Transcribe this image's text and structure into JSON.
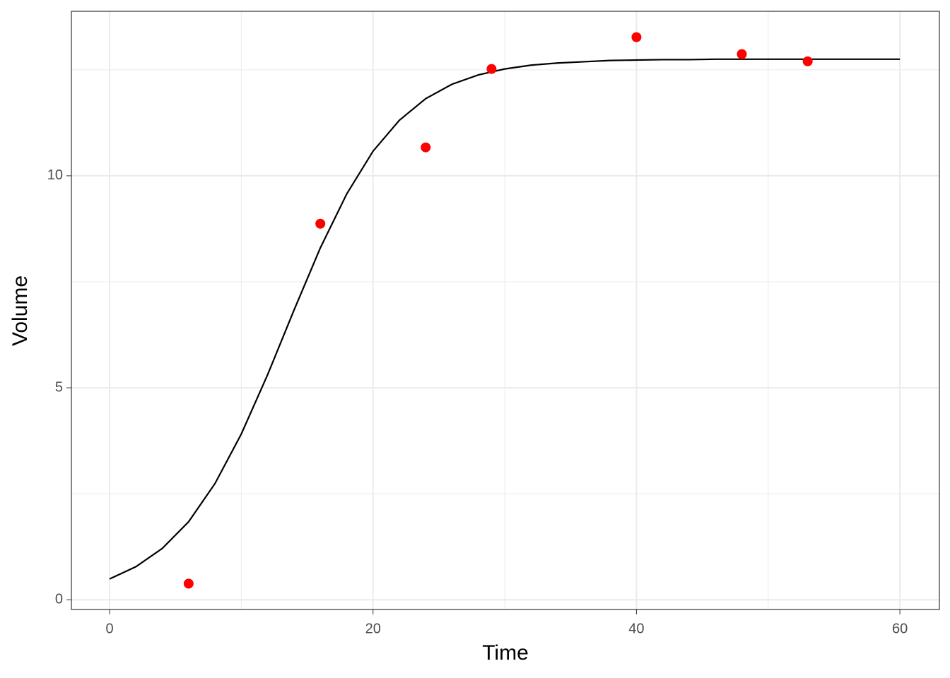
{
  "chart_data": {
    "type": "scatter",
    "x_label": "Time",
    "y_label": "Volume",
    "xlim": [
      -2.9,
      63.0
    ],
    "ylim": [
      -0.23,
      13.88
    ],
    "xticks": [
      0,
      20,
      40,
      60
    ],
    "yticks": [
      0,
      5,
      10
    ],
    "grid": true,
    "series": [
      {
        "type": "line",
        "color": "#000000",
        "x": [
          0,
          2,
          4,
          6,
          8,
          10,
          12,
          14,
          16,
          18,
          20,
          22,
          24,
          26,
          28,
          30,
          32,
          34,
          36,
          38,
          40,
          42,
          44,
          46,
          48,
          50,
          52,
          54,
          56,
          58,
          60
        ],
        "values": [
          0.49,
          0.78,
          1.21,
          1.84,
          2.74,
          3.91,
          5.31,
          6.83,
          8.3,
          9.57,
          10.58,
          11.31,
          11.82,
          12.16,
          12.38,
          12.52,
          12.61,
          12.66,
          12.69,
          12.72,
          12.73,
          12.74,
          12.74,
          12.75,
          12.75,
          12.75,
          12.75,
          12.75,
          12.75,
          12.75,
          12.75
        ]
      },
      {
        "type": "scatter",
        "color": "#ff0000",
        "x": [
          6,
          16,
          24,
          29,
          40,
          48,
          53
        ],
        "values": [
          0.38,
          8.87,
          10.67,
          12.52,
          13.27,
          12.87,
          12.7
        ]
      }
    ]
  }
}
